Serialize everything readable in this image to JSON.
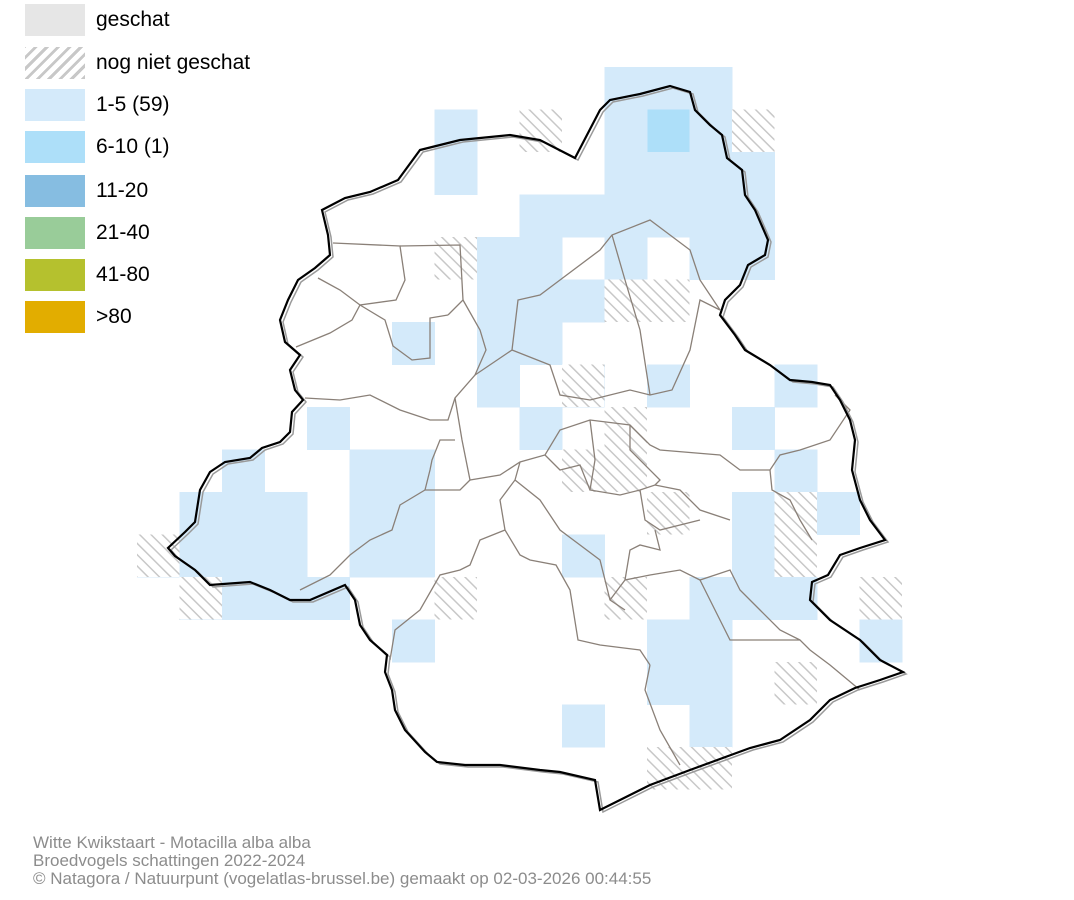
{
  "legend": {
    "items": [
      {
        "label": "geschat",
        "color": "#e6e6e6",
        "pattern": "solid"
      },
      {
        "label": "nog niet geschat",
        "color": "#c8c8c8",
        "pattern": "hatch"
      },
      {
        "label": "1-5 (59)",
        "color": "#d4eafa",
        "pattern": "solid"
      },
      {
        "label": "6-10 (1)",
        "color": "#addff9",
        "pattern": "solid"
      },
      {
        "label": "11-20",
        "color": "#86bde1",
        "pattern": "solid"
      },
      {
        "label": "21-40",
        "color": "#99cc99",
        "pattern": "solid"
      },
      {
        "label": "41-80",
        "color": "#b5c12e",
        "pattern": "solid"
      },
      {
        "label": ">80",
        "color": "#e2ad00",
        "pattern": "solid"
      }
    ]
  },
  "credits": {
    "species": "Witte Kwikstaart - Motacilla alba alba",
    "survey": "Broedvogels schattingen 2022-2024",
    "copyright": "© Natagora / Natuurpunt (vogelatlas-brussel.be) gemaakt op 02-03-2026 00:44:55"
  },
  "map": {
    "colors": {
      "class_1_5": "#d4eafa",
      "class_6_10": "#addff9",
      "hatch": "#c8c8c8",
      "border": "#000000",
      "border_shadow": "#9a9a9a",
      "municipal": "#8a8078"
    }
  }
}
